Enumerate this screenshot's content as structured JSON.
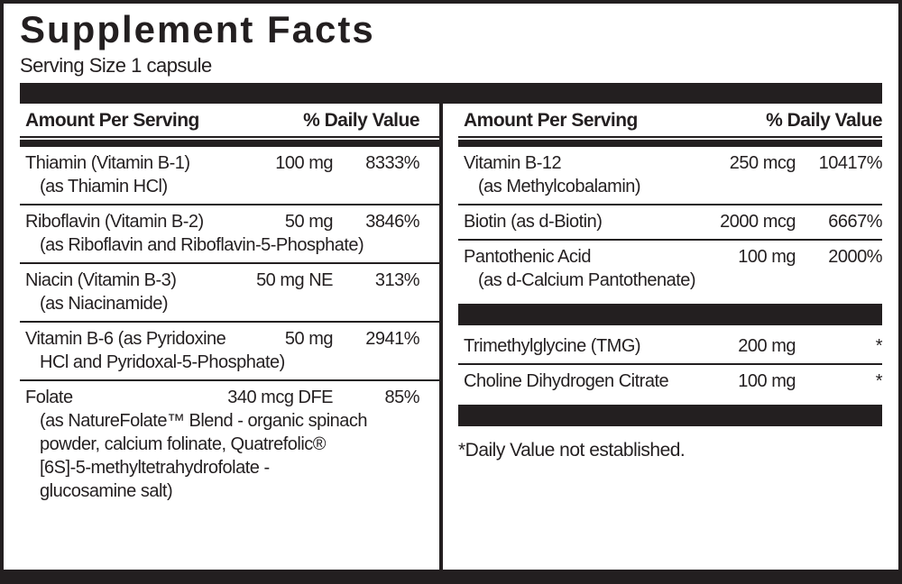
{
  "colors": {
    "ink": "#231f20",
    "paper": "#ffffff"
  },
  "title": "Supplement Facts",
  "serving_size": "Serving Size 1 capsule",
  "columns": [
    {
      "side": "left",
      "header": {
        "amount_label": "Amount Per Serving",
        "dv_label": "% Daily Value"
      },
      "items": [
        {
          "type": "nutrient",
          "name": "Thiamin (Vitamin B-1)",
          "amount": "100 mg",
          "dv": "8333%",
          "form": "(as Thiamin HCl)"
        },
        {
          "type": "nutrient",
          "name": "Riboflavin (Vitamin B-2)",
          "amount": "50 mg",
          "dv": "3846%",
          "form": "(as Riboflavin and Riboflavin-5-Phosphate)"
        },
        {
          "type": "nutrient",
          "name": "Niacin (Vitamin B-3)",
          "amount": "50 mg NE",
          "dv": "313%",
          "form": "(as Niacinamide)"
        },
        {
          "type": "nutrient",
          "name": "Vitamin B-6 (as Pyridoxine",
          "amount": "50 mg",
          "dv": "2941%",
          "form": "HCl and Pyridoxal-5-Phosphate)"
        },
        {
          "type": "nutrient",
          "name": "Folate",
          "amount": "340 mcg DFE",
          "dv": "85%",
          "form": "(as NatureFolate™ Blend - organic spinach\npowder, calcium folinate, Quatrefolic®\n[6S]-5-methyltetrahydrofolate -\nglucosamine salt)"
        }
      ]
    },
    {
      "side": "right",
      "header": {
        "amount_label": "Amount Per Serving",
        "dv_label": "% Daily Value"
      },
      "items": [
        {
          "type": "nutrient",
          "name": "Vitamin B-12",
          "amount": "250 mcg",
          "dv": "10417%",
          "form": "(as Methylcobalamin)"
        },
        {
          "type": "nutrient",
          "name": "Biotin (as d-Biotin)",
          "amount": "2000 mcg",
          "dv": "6667%"
        },
        {
          "type": "nutrient",
          "name": "Pantothenic Acid",
          "amount": "100 mg",
          "dv": "2000%",
          "form": "(as d-Calcium Pantothenate)"
        },
        {
          "type": "bar"
        },
        {
          "type": "nutrient",
          "name": "Trimethylglycine (TMG)",
          "amount": "200 mg",
          "dv": "*"
        },
        {
          "type": "nutrient",
          "name": "Choline Dihydrogen Citrate",
          "amount": "100 mg",
          "dv": "*"
        },
        {
          "type": "bar"
        },
        {
          "type": "note",
          "text": "*Daily Value not established."
        }
      ]
    }
  ]
}
